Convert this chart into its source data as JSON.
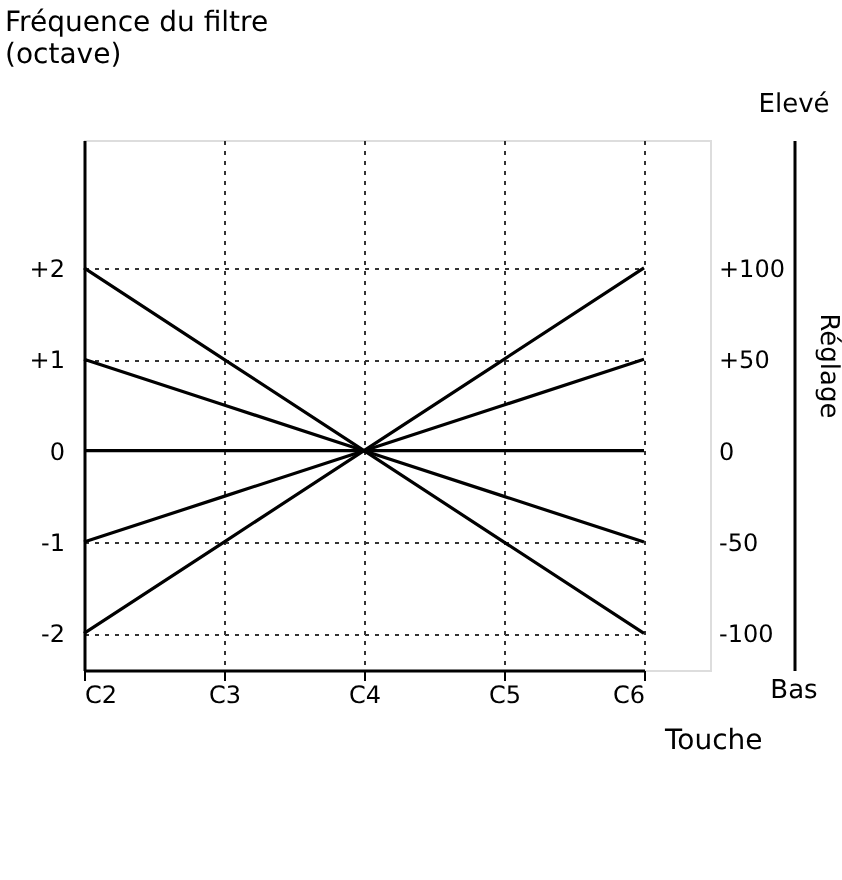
{
  "chart_data": {
    "type": "line",
    "ylabel": "Fréquence du filtre\n(octave)",
    "xlabel": "Touche",
    "y2label": "Réglage",
    "annotations": [
      "Elevé",
      "Bas"
    ],
    "categories": [
      "C2",
      "C3",
      "C4",
      "C5",
      "C6"
    ],
    "series": [
      {
        "color": "#000000",
        "values": [
          2,
          1,
          0,
          -1,
          -2
        ]
      },
      {
        "color": "#000000",
        "values": [
          1,
          0.5,
          0,
          -0.5,
          -1
        ]
      },
      {
        "color": "#000000",
        "values": [
          0,
          0,
          0,
          0,
          0
        ]
      },
      {
        "color": "#000000",
        "values": [
          -1,
          -0.5,
          0,
          0.5,
          1
        ]
      },
      {
        "color": "#000000",
        "values": [
          -2,
          -1,
          0,
          1,
          2
        ]
      }
    ],
    "ylim": [
      -2.4,
      3.4
    ],
    "yticks": [
      {
        "value": 2,
        "label": "+2"
      },
      {
        "value": 1,
        "label": "+1"
      },
      0,
      -1,
      -2
    ],
    "y2lim": [
      -120,
      170
    ],
    "y2ticks": [
      {
        "value": 100,
        "label": "+100"
      },
      {
        "value": 50,
        "label": "+50"
      },
      0,
      -50,
      -100
    ],
    "grid": true,
    "line_style": "solid",
    "marker": "none"
  }
}
